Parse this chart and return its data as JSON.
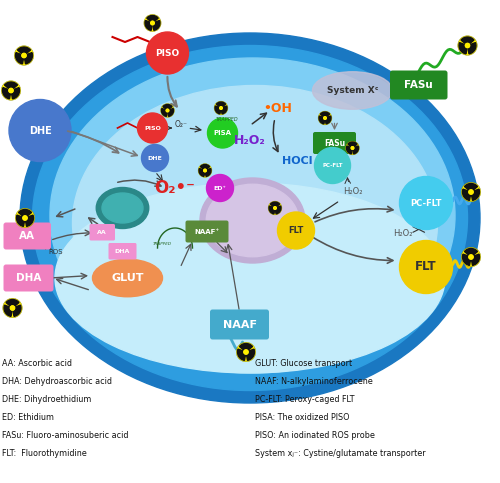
{
  "bg_color": "#ffffff",
  "legend_left": [
    "AA: Ascorbic acid",
    "DHA: Dehydroascorbic acid",
    "DHE: Dihydroethidium",
    "ED: Ethidium",
    "FASu: Fluoro-aminosuberic acid",
    "FLT:  Fluorothymidine"
  ],
  "legend_right": [
    "GLUT: Glucose transport",
    "NAAF: N-alkylaminoferrocene",
    "PC-FLT: Peroxy-caged FLT",
    "PISA: The oxidized PISO",
    "PISO: An iodinated ROS probe",
    "System xⱼ⁻: Cystine/glutamate transporter"
  ]
}
